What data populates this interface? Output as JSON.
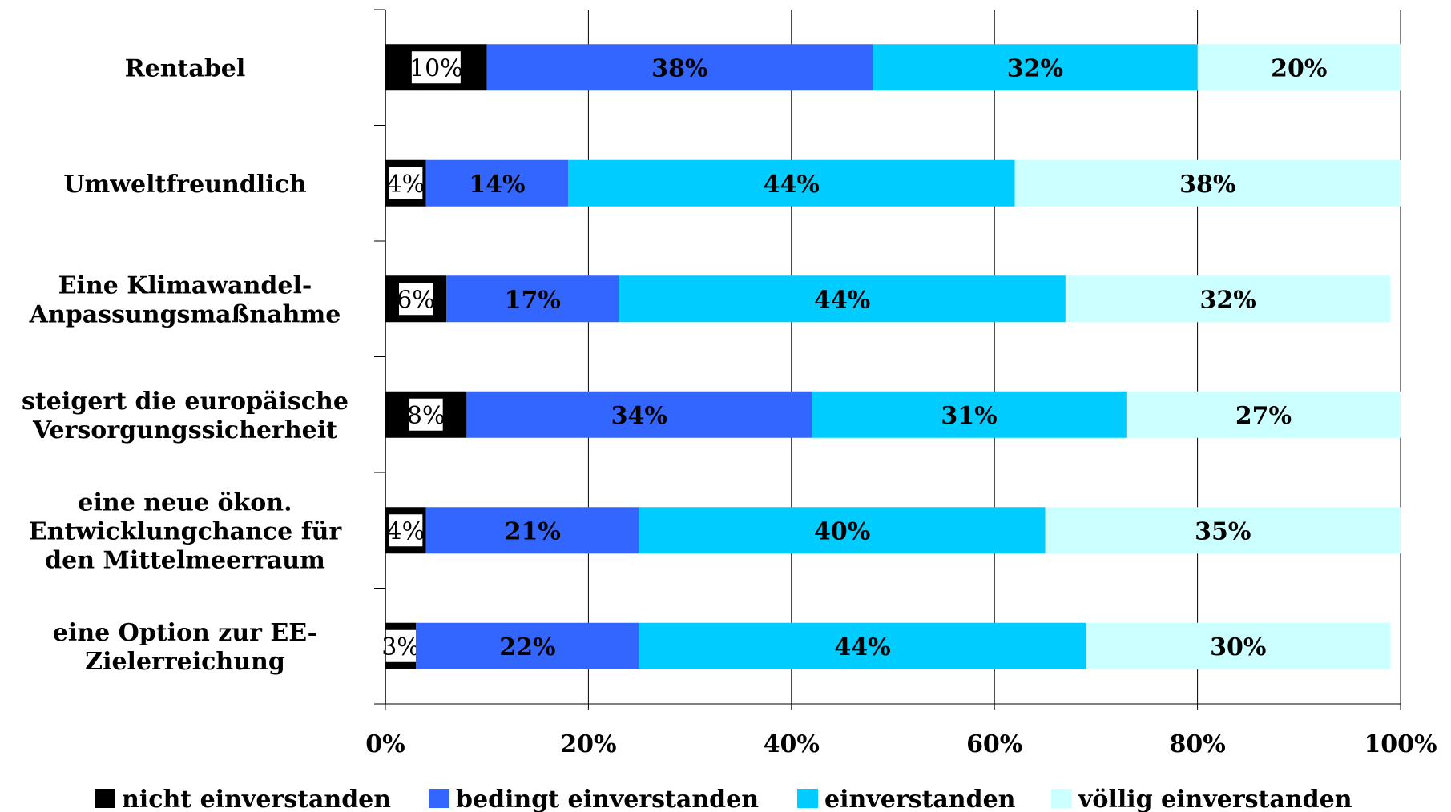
{
  "chart_data": {
    "type": "bar",
    "orientation": "horizontal",
    "stacked": true,
    "categories": [
      [
        "Rentabel"
      ],
      [
        "Umweltfreundlich"
      ],
      [
        "Eine Klimawandel-",
        "Anpassungsmaßnahme"
      ],
      [
        "steigert die europäische",
        "Versorgungssicherheit"
      ],
      [
        "eine neue ökon.",
        "Entwicklungchance für",
        "den Mittelmeerraum"
      ],
      [
        "eine Option zur EE-",
        "Zielerreichung"
      ]
    ],
    "series": [
      {
        "name": "nicht einverstanden",
        "color": "#000000",
        "values": [
          10,
          4,
          6,
          8,
          4,
          3
        ],
        "labels": [
          "10%",
          "4%",
          "6%",
          "8%",
          "4%",
          "3%"
        ]
      },
      {
        "name": "bedingt einverstanden",
        "color": "#3366FF",
        "values": [
          38,
          14,
          17,
          34,
          21,
          22
        ],
        "labels": [
          "38%",
          "14%",
          "17%",
          "34%",
          "21%",
          "22%"
        ]
      },
      {
        "name": "einverstanden",
        "color": "#00CCFF",
        "values": [
          32,
          44,
          44,
          31,
          40,
          44
        ],
        "labels": [
          "32%",
          "44%",
          "44%",
          "31%",
          "40%",
          "44%"
        ]
      },
      {
        "name": "völlig einverstanden",
        "color": "#CCFFFF",
        "values": [
          20,
          38,
          32,
          27,
          35,
          30
        ],
        "labels": [
          "20%",
          "38%",
          "32%",
          "27%",
          "35%",
          "30%"
        ]
      }
    ],
    "xlim": [
      0,
      100
    ],
    "x_ticks": [
      0,
      20,
      40,
      60,
      80,
      100
    ],
    "x_tick_labels": [
      "0%",
      "20%",
      "40%",
      "60%",
      "80%",
      "100%"
    ],
    "grid": "vertical",
    "legend": "bottom",
    "title": "",
    "xlabel": "",
    "ylabel": ""
  }
}
